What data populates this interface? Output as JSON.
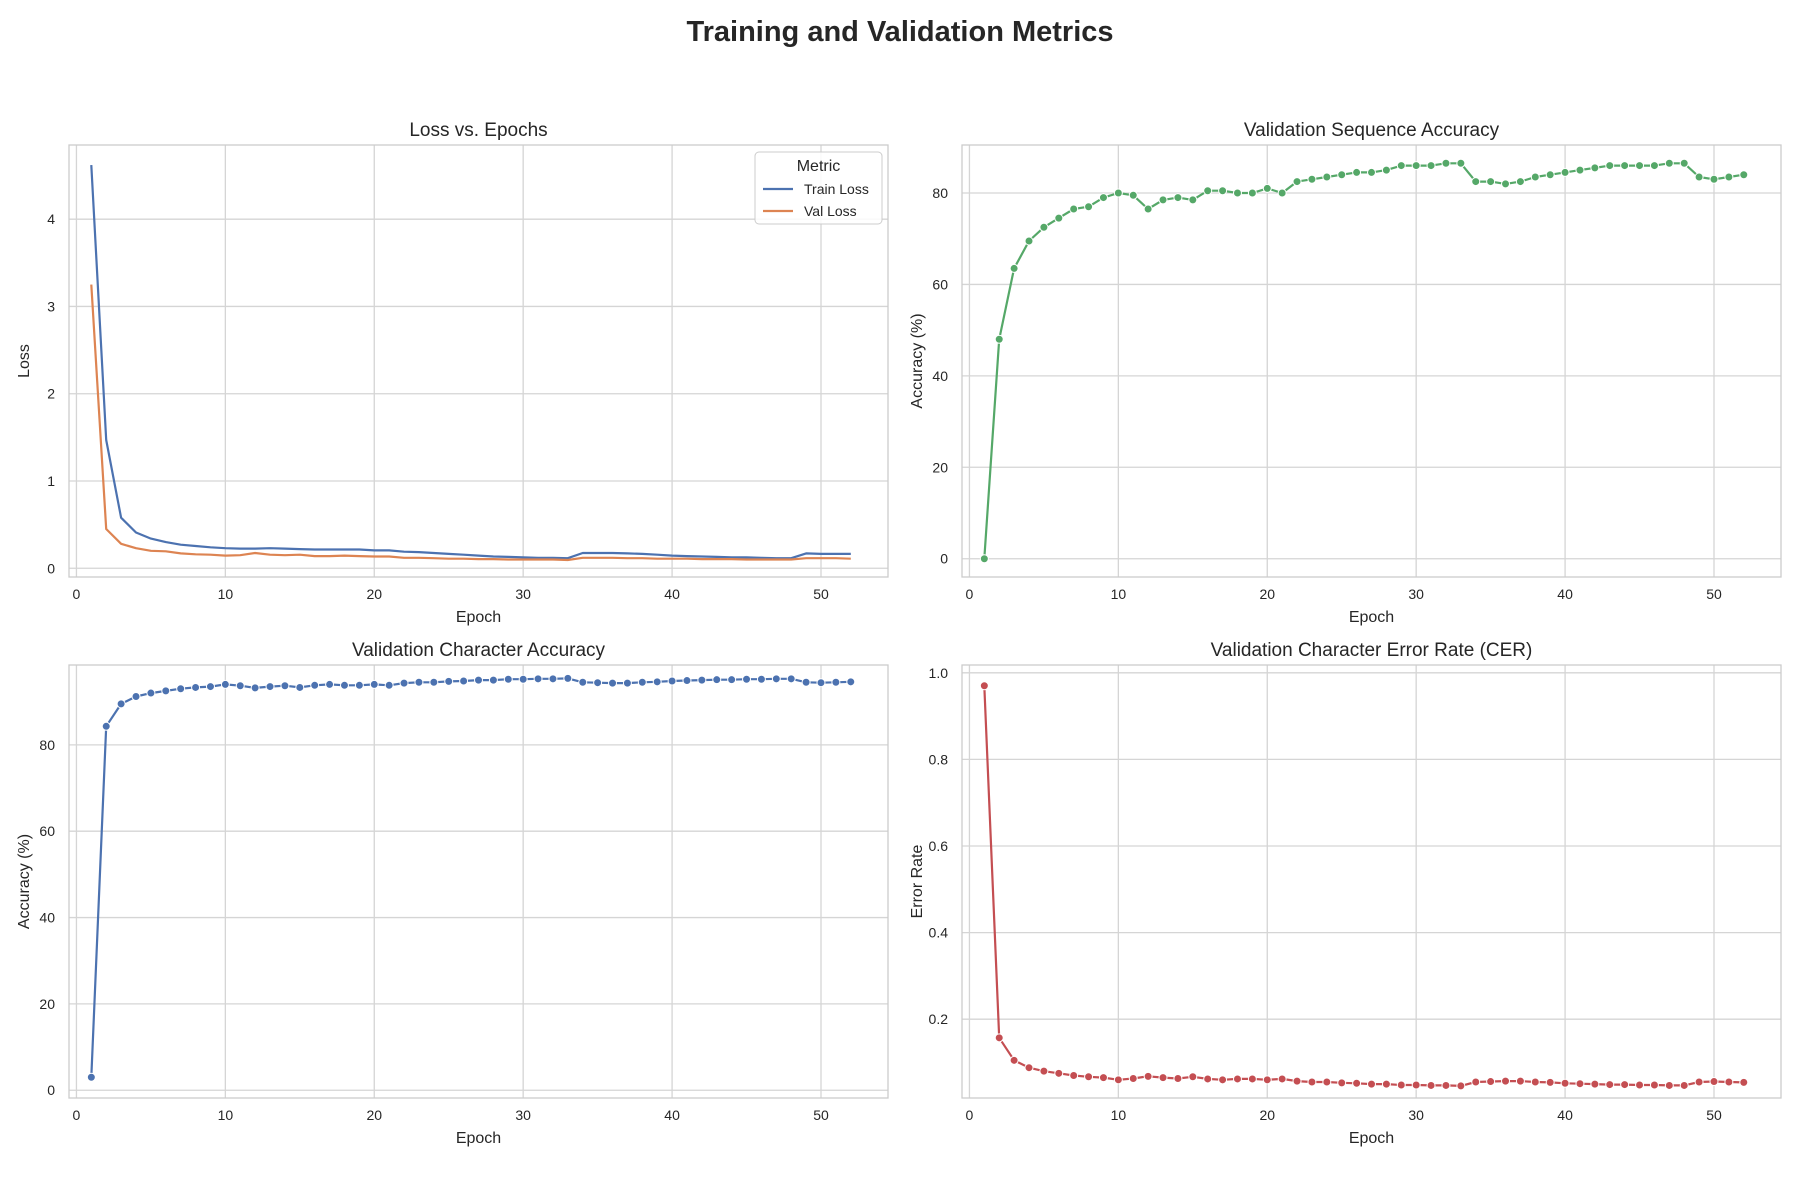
{
  "figure": {
    "title": "Training and Validation Metrics"
  },
  "chart_data": [
    {
      "type": "line",
      "title": "Loss vs. Epochs",
      "xlabel": "Epoch",
      "ylabel": "Loss",
      "xlim": [
        -0.5,
        54.5
      ],
      "ylim": [
        -0.1,
        4.85
      ],
      "xticks": [
        0,
        10,
        20,
        30,
        40,
        50
      ],
      "yticks": [
        0,
        1,
        2,
        3,
        4
      ],
      "ytick_decimals": 0,
      "markers": false,
      "grid": true,
      "legend": {
        "title": "Metric",
        "position": "top-right"
      },
      "series": [
        {
          "name": "Train Loss",
          "color": "#4c72b0",
          "x": [
            1,
            2,
            3,
            4,
            5,
            6,
            7,
            8,
            9,
            10,
            11,
            12,
            13,
            14,
            15,
            16,
            17,
            18,
            19,
            20,
            21,
            22,
            23,
            24,
            25,
            26,
            27,
            28,
            29,
            30,
            31,
            32,
            33,
            34,
            35,
            36,
            37,
            38,
            39,
            40,
            41,
            42,
            43,
            44,
            45,
            46,
            47,
            48,
            49,
            50,
            51,
            52
          ],
          "values": [
            4.62,
            1.47,
            0.58,
            0.41,
            0.34,
            0.3,
            0.27,
            0.255,
            0.24,
            0.23,
            0.225,
            0.225,
            0.23,
            0.225,
            0.22,
            0.215,
            0.215,
            0.215,
            0.215,
            0.205,
            0.205,
            0.19,
            0.185,
            0.175,
            0.165,
            0.155,
            0.145,
            0.135,
            0.13,
            0.125,
            0.12,
            0.12,
            0.115,
            0.175,
            0.175,
            0.175,
            0.17,
            0.165,
            0.155,
            0.145,
            0.14,
            0.135,
            0.13,
            0.125,
            0.125,
            0.12,
            0.115,
            0.115,
            0.17,
            0.165,
            0.165,
            0.165
          ]
        },
        {
          "name": "Val Loss",
          "color": "#dd8452",
          "x": [
            1,
            2,
            3,
            4,
            5,
            6,
            7,
            8,
            9,
            10,
            11,
            12,
            13,
            14,
            15,
            16,
            17,
            18,
            19,
            20,
            21,
            22,
            23,
            24,
            25,
            26,
            27,
            28,
            29,
            30,
            31,
            32,
            33,
            34,
            35,
            36,
            37,
            38,
            39,
            40,
            41,
            42,
            43,
            44,
            45,
            46,
            47,
            48,
            49,
            50,
            51,
            52
          ],
          "values": [
            3.25,
            0.45,
            0.28,
            0.23,
            0.2,
            0.195,
            0.17,
            0.16,
            0.155,
            0.145,
            0.15,
            0.175,
            0.155,
            0.15,
            0.155,
            0.14,
            0.14,
            0.145,
            0.14,
            0.135,
            0.135,
            0.12,
            0.12,
            0.115,
            0.11,
            0.11,
            0.105,
            0.105,
            0.1,
            0.1,
            0.1,
            0.1,
            0.095,
            0.12,
            0.12,
            0.12,
            0.115,
            0.115,
            0.11,
            0.11,
            0.11,
            0.105,
            0.105,
            0.105,
            0.1,
            0.1,
            0.1,
            0.1,
            0.115,
            0.115,
            0.115,
            0.11
          ]
        }
      ]
    },
    {
      "type": "line",
      "title": "Validation Sequence Accuracy",
      "xlabel": "Epoch",
      "ylabel": "Accuracy (%)",
      "xlim": [
        -0.5,
        54.5
      ],
      "ylim": [
        -4,
        90.5
      ],
      "xticks": [
        0,
        10,
        20,
        30,
        40,
        50
      ],
      "yticks": [
        0,
        20,
        40,
        60,
        80
      ],
      "ytick_decimals": 0,
      "markers": true,
      "grid": true,
      "series": [
        {
          "color": "#55a868",
          "x": [
            1,
            2,
            3,
            4,
            5,
            6,
            7,
            8,
            9,
            10,
            11,
            12,
            13,
            14,
            15,
            16,
            17,
            18,
            19,
            20,
            21,
            22,
            23,
            24,
            25,
            26,
            27,
            28,
            29,
            30,
            31,
            32,
            33,
            34,
            35,
            36,
            37,
            38,
            39,
            40,
            41,
            42,
            43,
            44,
            45,
            46,
            47,
            48,
            49,
            50,
            51,
            52
          ],
          "values": [
            0,
            48,
            63.5,
            69.5,
            72.5,
            74.5,
            76.5,
            77,
            79,
            80,
            79.5,
            76.5,
            78.5,
            79,
            78.5,
            80.5,
            80.5,
            80,
            80,
            81,
            80,
            82.5,
            83,
            83.5,
            84,
            84.5,
            84.5,
            85,
            86,
            86,
            86,
            86.5,
            86.5,
            82.5,
            82.5,
            82,
            82.5,
            83.5,
            84,
            84.5,
            85,
            85.5,
            86,
            86,
            86,
            86,
            86.5,
            86.5,
            83.5,
            83,
            83.5,
            84
          ]
        }
      ]
    },
    {
      "type": "line",
      "title": "Validation Character Accuracy",
      "xlabel": "Epoch",
      "ylabel": "Accuracy (%)",
      "xlim": [
        -0.5,
        54.5
      ],
      "ylim": [
        -1.8,
        98.5
      ],
      "xticks": [
        0,
        10,
        20,
        30,
        40,
        50
      ],
      "yticks": [
        0,
        20,
        40,
        60,
        80
      ],
      "ytick_decimals": 0,
      "markers": true,
      "grid": true,
      "series": [
        {
          "color": "#4c72b0",
          "x": [
            1,
            2,
            3,
            4,
            5,
            6,
            7,
            8,
            9,
            10,
            11,
            12,
            13,
            14,
            15,
            16,
            17,
            18,
            19,
            20,
            21,
            22,
            23,
            24,
            25,
            26,
            27,
            28,
            29,
            30,
            31,
            32,
            33,
            34,
            35,
            36,
            37,
            38,
            39,
            40,
            41,
            42,
            43,
            44,
            45,
            46,
            47,
            48,
            49,
            50,
            51,
            52
          ],
          "values": [
            3,
            84.3,
            89.5,
            91.2,
            92,
            92.5,
            93,
            93.3,
            93.5,
            94,
            93.7,
            93.2,
            93.5,
            93.7,
            93.3,
            93.8,
            94,
            93.8,
            93.8,
            94,
            93.8,
            94.3,
            94.5,
            94.5,
            94.7,
            94.8,
            95,
            95,
            95.2,
            95.2,
            95.3,
            95.3,
            95.4,
            94.5,
            94.4,
            94.3,
            94.3,
            94.5,
            94.6,
            94.8,
            94.9,
            95,
            95.1,
            95.1,
            95.2,
            95.2,
            95.3,
            95.3,
            94.5,
            94.4,
            94.5,
            94.6
          ]
        }
      ]
    },
    {
      "type": "line",
      "title": "Validation Character Error Rate (CER)",
      "xlabel": "Epoch",
      "ylabel": "Error Rate",
      "xlim": [
        -0.5,
        54.5
      ],
      "ylim": [
        0.018,
        1.018
      ],
      "xticks": [
        0,
        10,
        20,
        30,
        40,
        50
      ],
      "yticks": [
        0.2,
        0.4,
        0.6,
        0.8,
        1.0
      ],
      "ytick_decimals": 1,
      "markers": true,
      "grid": true,
      "series": [
        {
          "color": "#c44e52",
          "x": [
            1,
            2,
            3,
            4,
            5,
            6,
            7,
            8,
            9,
            10,
            11,
            12,
            13,
            14,
            15,
            16,
            17,
            18,
            19,
            20,
            21,
            22,
            23,
            24,
            25,
            26,
            27,
            28,
            29,
            30,
            31,
            32,
            33,
            34,
            35,
            36,
            37,
            38,
            39,
            40,
            41,
            42,
            43,
            44,
            45,
            46,
            47,
            48,
            49,
            50,
            51,
            52
          ],
          "values": [
            0.97,
            0.157,
            0.105,
            0.088,
            0.08,
            0.075,
            0.07,
            0.067,
            0.065,
            0.06,
            0.063,
            0.068,
            0.065,
            0.063,
            0.067,
            0.062,
            0.06,
            0.062,
            0.062,
            0.06,
            0.062,
            0.057,
            0.055,
            0.055,
            0.053,
            0.052,
            0.05,
            0.05,
            0.048,
            0.048,
            0.047,
            0.047,
            0.046,
            0.055,
            0.056,
            0.057,
            0.057,
            0.055,
            0.054,
            0.052,
            0.051,
            0.05,
            0.049,
            0.049,
            0.048,
            0.048,
            0.047,
            0.047,
            0.055,
            0.056,
            0.055,
            0.054
          ]
        }
      ]
    }
  ]
}
